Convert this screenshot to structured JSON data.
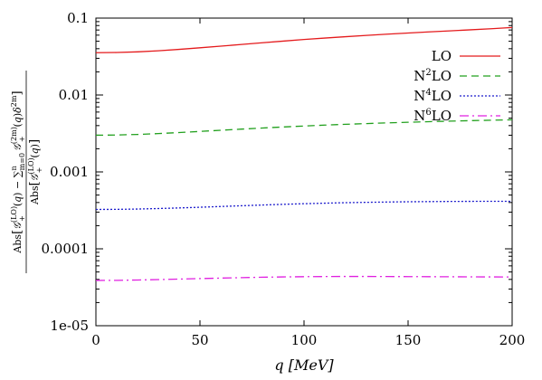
{
  "chart_data": {
    "type": "line",
    "title": "",
    "xlabel": "q [MeV]",
    "ylabel": "Abs[G+(LO)(q) − Σ_{m=0}^{n} G+(2m)(q) δ^{2m}] / Abs[G+(LO)(q)]",
    "xlim": [
      0,
      200
    ],
    "ylim": [
      1e-05,
      0.1
    ],
    "yscale": "log",
    "grid": false,
    "legend_position": "top-right",
    "x_ticks": [
      "0",
      "50",
      "100",
      "150",
      "200"
    ],
    "y_ticks": [
      "0.1",
      "0.01",
      "0.001",
      "0.0001",
      "1e-05"
    ],
    "series": [
      {
        "name": "LO",
        "sup": "",
        "color": "#e41a1c",
        "dash": "",
        "x": [
          0,
          10,
          20,
          30,
          40,
          50,
          60,
          70,
          80,
          90,
          100,
          110,
          120,
          130,
          140,
          150,
          160,
          170,
          180,
          190,
          200
        ],
        "values": [
          0.0355,
          0.0357,
          0.0364,
          0.0376,
          0.0392,
          0.0411,
          0.0432,
          0.0454,
          0.0478,
          0.0502,
          0.0527,
          0.055,
          0.0573,
          0.0596,
          0.0618,
          0.064,
          0.0661,
          0.0682,
          0.0704,
          0.0728,
          0.0755
        ]
      },
      {
        "name": "N",
        "sup": "2",
        "suffix": "LO",
        "color": "#22a01e",
        "dash": "8,5",
        "x": [
          0,
          10,
          20,
          30,
          40,
          50,
          60,
          70,
          80,
          90,
          100,
          110,
          120,
          130,
          140,
          150,
          160,
          170,
          180,
          190,
          200
        ],
        "values": [
          0.003,
          0.00302,
          0.00307,
          0.00315,
          0.00325,
          0.00336,
          0.00348,
          0.0036,
          0.00372,
          0.00384,
          0.00395,
          0.00406,
          0.00416,
          0.00425,
          0.00434,
          0.00442,
          0.0045,
          0.00457,
          0.00464,
          0.0047,
          0.00476
        ]
      },
      {
        "name": "N",
        "sup": "4",
        "suffix": "LO",
        "color": "#1c1ccc",
        "dash": "2,2",
        "x": [
          0,
          10,
          20,
          30,
          40,
          50,
          60,
          70,
          80,
          90,
          100,
          110,
          120,
          130,
          140,
          150,
          160,
          170,
          180,
          190,
          200
        ],
        "values": [
          0.000325,
          0.000326,
          0.000329,
          0.000334,
          0.00034,
          0.000347,
          0.000355,
          0.000363,
          0.000371,
          0.000379,
          0.000386,
          0.000392,
          0.000398,
          0.000402,
          0.000406,
          0.000409,
          0.000411,
          0.000413,
          0.000414,
          0.000415,
          0.000415
        ]
      },
      {
        "name": "N",
        "sup": "6",
        "suffix": "LO",
        "color": "#e020e0",
        "dash": "10,4,2,4",
        "x": [
          0,
          10,
          20,
          30,
          40,
          50,
          60,
          70,
          80,
          90,
          100,
          110,
          120,
          130,
          140,
          150,
          160,
          170,
          180,
          190,
          200
        ],
        "values": [
          3.88e-05,
          3.89e-05,
          3.93e-05,
          3.98e-05,
          4.04e-05,
          4.1e-05,
          4.16e-05,
          4.22e-05,
          4.27e-05,
          4.31e-05,
          4.34e-05,
          4.36e-05,
          4.37e-05,
          4.37e-05,
          4.36e-05,
          4.35e-05,
          4.34e-05,
          4.33e-05,
          4.32e-05,
          4.31e-05,
          4.3e-05
        ]
      }
    ]
  }
}
